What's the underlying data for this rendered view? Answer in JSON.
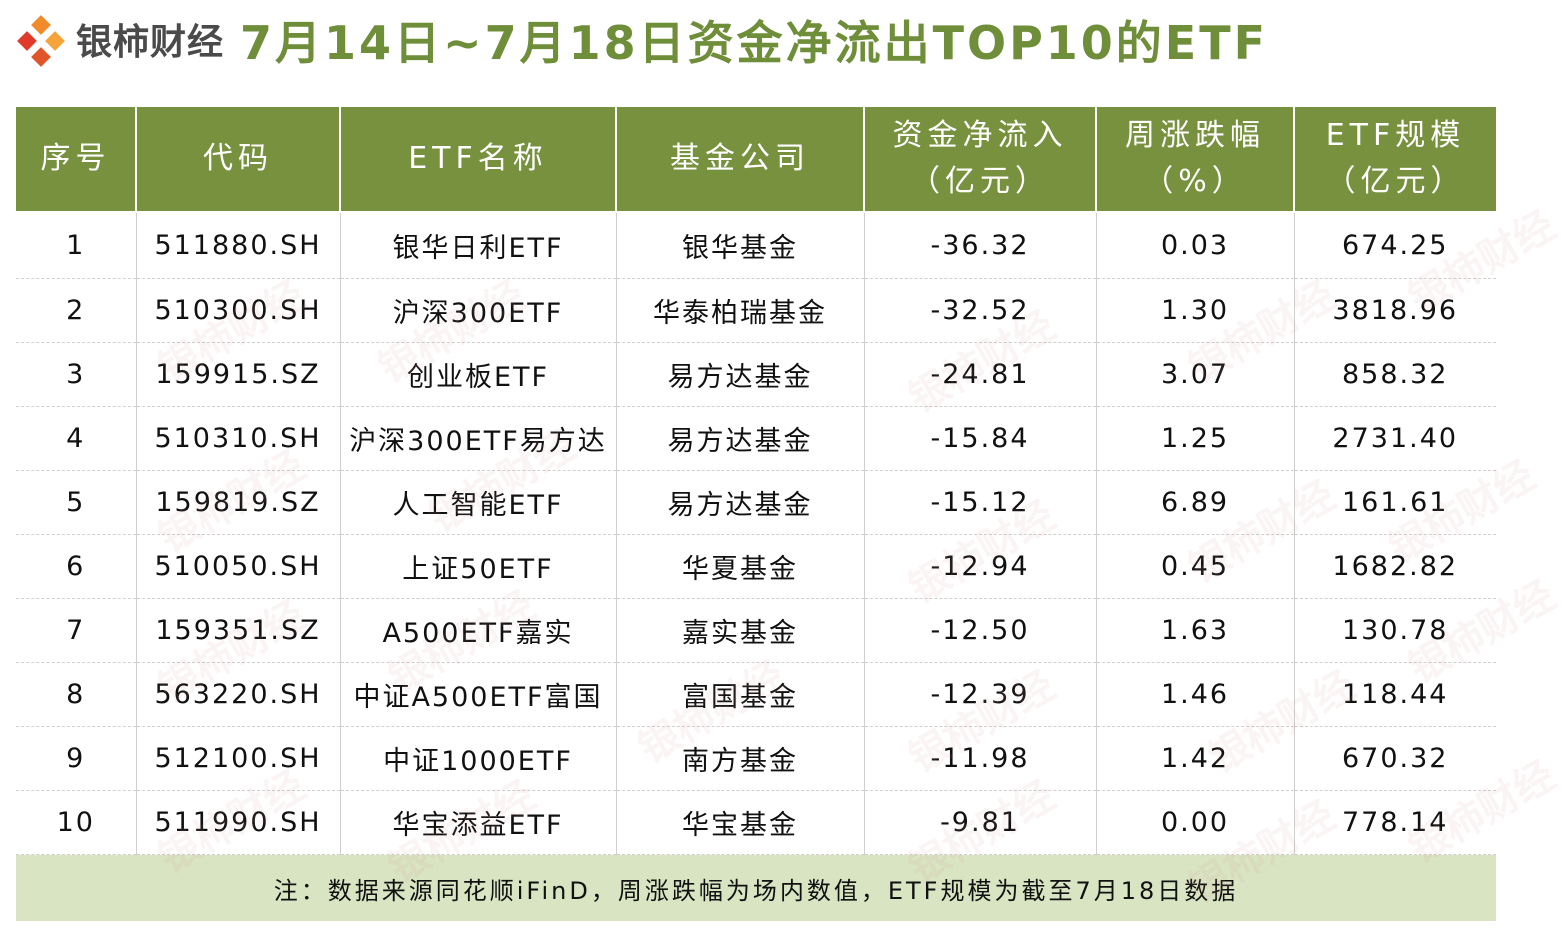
{
  "brand": {
    "logo_icon": "persimmon-diamond-logo-icon",
    "name": "银柿财经",
    "colors": {
      "orange": "#f07a2a",
      "red": "#e23a2a",
      "text": "#4a4a4a"
    }
  },
  "title": "7月14日~7月18日资金净流出TOP10的ETF",
  "table": {
    "header_color": "#77913f",
    "headers": [
      {
        "line1": "序号",
        "line2": ""
      },
      {
        "line1": "代码",
        "line2": ""
      },
      {
        "line1": "ETF名称",
        "line2": ""
      },
      {
        "line1": "基金公司",
        "line2": ""
      },
      {
        "line1": "资金净流入",
        "line2": "（亿元）"
      },
      {
        "line1": "周涨跌幅",
        "line2": "（%）"
      },
      {
        "line1": "ETF规模",
        "line2": "（亿元）"
      }
    ],
    "rows": [
      [
        "1",
        "511880.SH",
        "银华日利ETF",
        "银华基金",
        "-36.32",
        "0.03",
        "674.25"
      ],
      [
        "2",
        "510300.SH",
        "沪深300ETF",
        "华泰柏瑞基金",
        "-32.52",
        "1.30",
        "3818.96"
      ],
      [
        "3",
        "159915.SZ",
        "创业板ETF",
        "易方达基金",
        "-24.81",
        "3.07",
        "858.32"
      ],
      [
        "4",
        "510310.SH",
        "沪深300ETF易方达",
        "易方达基金",
        "-15.84",
        "1.25",
        "2731.40"
      ],
      [
        "5",
        "159819.SZ",
        "人工智能ETF",
        "易方达基金",
        "-15.12",
        "6.89",
        "161.61"
      ],
      [
        "6",
        "510050.SH",
        "上证50ETF",
        "华夏基金",
        "-12.94",
        "0.45",
        "1682.82"
      ],
      [
        "7",
        "159351.SZ",
        "A500ETF嘉实",
        "嘉实基金",
        "-12.50",
        "1.63",
        "130.78"
      ],
      [
        "8",
        "563220.SH",
        "中证A500ETF富国",
        "富国基金",
        "-12.39",
        "1.46",
        "118.44"
      ],
      [
        "9",
        "512100.SH",
        "中证1000ETF",
        "南方基金",
        "-11.98",
        "1.42",
        "670.32"
      ],
      [
        "10",
        "511990.SH",
        "华宝添益ETF",
        "华宝基金",
        "-9.81",
        "0.00",
        "778.14"
      ]
    ],
    "footnote": "注：数据来源同花顺iFinD，周涨跌幅为场内数值，ETF规模为截至7月18日数据",
    "footnote_bg": "#d8e4c2"
  },
  "watermark": "银柿财经"
}
